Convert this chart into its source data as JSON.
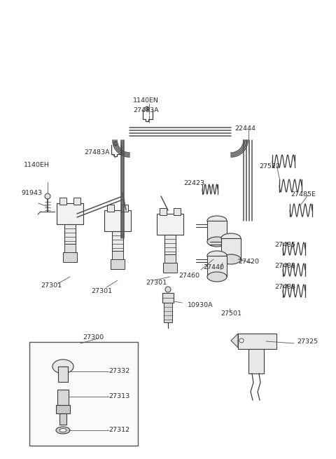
{
  "bg_color": "#ffffff",
  "lc": "#3a3a3a",
  "wc": "#4a4a4a",
  "figsize": [
    4.8,
    6.55
  ],
  "dpi": 100,
  "xlim": [
    0,
    480
  ],
  "ylim": [
    0,
    655
  ]
}
